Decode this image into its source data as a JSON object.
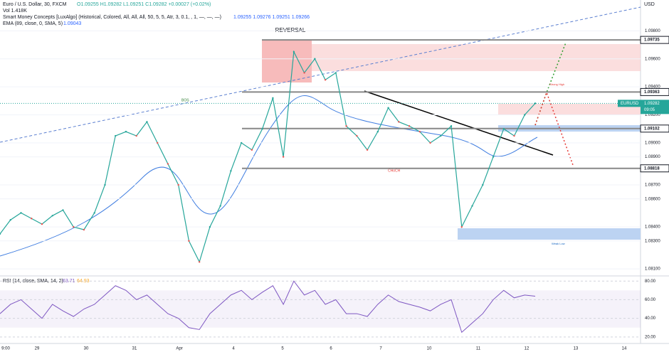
{
  "header": {
    "symbol": "Euro / U.S. Dollar, 30, FXCM",
    "ohlc": "O1.09255 H1.09282 L1.09251 C1.09282 +0.00027 (+0.02%)",
    "volume": "Vol 1.418K",
    "smc": "Smart Money Concepts [LuxAlgo] (Historical, Colored, All, All, All, 50, 5, 5, Atr, 3, 0.1, , 1, —, —, —)",
    "smc_values": "1.09255 1.09276 1.09251 1.09266",
    "ema": "EMA (89, close, 0, SMA, 5)",
    "ema_value": "1.09043"
  },
  "annotations": {
    "reversal": "REVERSAL",
    "bos": "BOS",
    "choch": "CHoCH",
    "weak_low": "Weak Low",
    "strong_high": "Strong High"
  },
  "price_axis": {
    "currency": "USD",
    "ylim": [
      1.0805,
      1.1002
    ],
    "ticks": [
      {
        "value": 1.098,
        "label": "1.09800"
      },
      {
        "value": 1.096,
        "label": "1.09600"
      },
      {
        "value": 1.094,
        "label": "1.09400"
      },
      {
        "value": 1.092,
        "label": "1.09200"
      },
      {
        "value": 1.09,
        "label": "1.09000"
      },
      {
        "value": 1.089,
        "label": "1.08900"
      },
      {
        "value": 1.087,
        "label": "1.08700"
      },
      {
        "value": 1.086,
        "label": "1.08600"
      },
      {
        "value": 1.084,
        "label": "1.08400"
      },
      {
        "value": 1.083,
        "label": "1.08300"
      },
      {
        "value": 1.081,
        "label": "1.08100"
      }
    ],
    "levels": [
      {
        "value": 1.09735,
        "label": "1.09735"
      },
      {
        "value": 1.09363,
        "label": "1.09363"
      },
      {
        "value": 1.09102,
        "label": "1.09102"
      },
      {
        "value": 1.08818,
        "label": "1.08818"
      }
    ],
    "last": {
      "symbol": "EURUSD",
      "value": 1.09282,
      "label": "1.09282",
      "countdown": "09:05"
    }
  },
  "price": {
    "color": "#26a69a",
    "values": [
      1.0835,
      1.0845,
      1.085,
      1.0846,
      1.0842,
      1.0848,
      1.0852,
      1.084,
      1.0838,
      1.085,
      1.087,
      1.0905,
      1.0908,
      1.0905,
      1.0915,
      1.09,
      1.0885,
      1.087,
      1.083,
      1.0815,
      1.084,
      1.0855,
      1.088,
      1.09,
      1.0895,
      1.091,
      1.0932,
      1.089,
      1.0965,
      1.095,
      1.096,
      1.0945,
      1.095,
      1.0912,
      1.0905,
      1.0895,
      1.0908,
      1.0925,
      1.0915,
      1.0912,
      1.0908,
      1.09,
      1.0905,
      1.0912,
      1.084,
      1.0855,
      1.087,
      1.089,
      1.091,
      1.0905,
      1.092,
      1.09282
    ]
  },
  "rsi": {
    "title": "RSI (14, close, SMA, 14, 2)",
    "values_text": "63.71",
    "sma_text": "64.93",
    "ylim": [
      13,
      85.5
    ],
    "color": "#7e57c2",
    "ticks": [
      {
        "value": 80,
        "label": "80.00"
      },
      {
        "value": 60,
        "label": "60.00"
      },
      {
        "value": 40,
        "label": "40.00"
      },
      {
        "value": 20,
        "label": "20.00"
      }
    ],
    "values": [
      45,
      55,
      60,
      50,
      40,
      55,
      48,
      42,
      50,
      55,
      65,
      75,
      70,
      60,
      65,
      55,
      45,
      40,
      30,
      28,
      45,
      55,
      65,
      70,
      60,
      68,
      75,
      55,
      80,
      65,
      70,
      55,
      60,
      45,
      45,
      42,
      55,
      65,
      58,
      55,
      52,
      48,
      55,
      60,
      25,
      35,
      45,
      60,
      70,
      62,
      65,
      63.71
    ]
  },
  "time_axis": [
    "9:00",
    "29",
    "30",
    "31",
    "Apr",
    "4",
    "5",
    "6",
    "7",
    "10",
    "11",
    "12",
    "13",
    "14"
  ]
}
